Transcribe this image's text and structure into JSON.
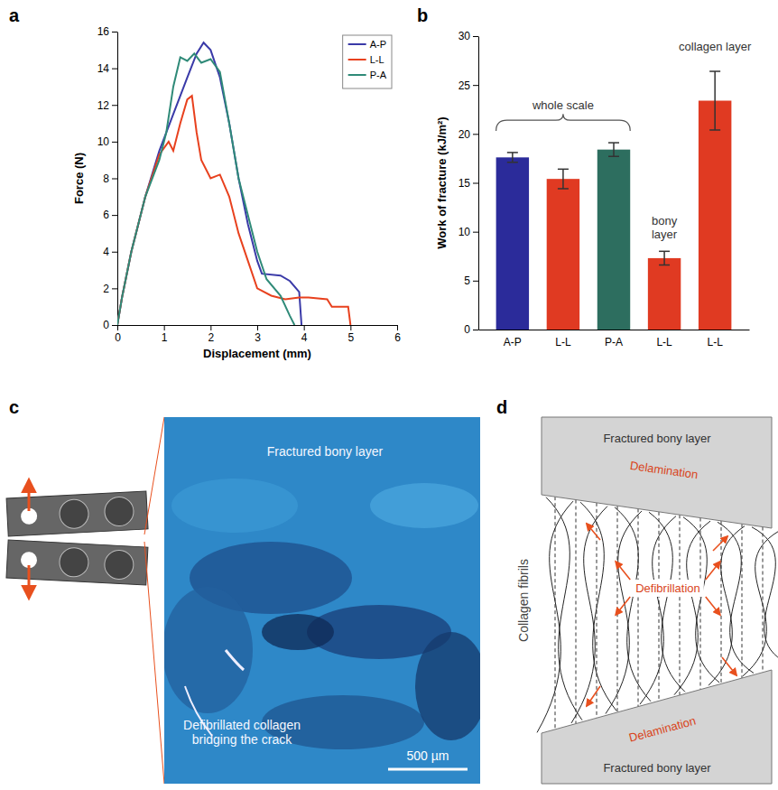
{
  "chart_data": [
    {
      "type": "line",
      "panel_label": "a",
      "x_label": "Displacement (mm)",
      "y_label": "Force (N)",
      "xlim": [
        0,
        6
      ],
      "xticks": [
        0,
        1,
        2,
        3,
        4,
        5,
        6
      ],
      "ylim": [
        0,
        16
      ],
      "yticks": [
        0,
        2,
        4,
        6,
        8,
        10,
        12,
        14,
        16
      ],
      "grid": false,
      "legend": "top-right",
      "series": [
        {
          "name": "A-P",
          "color": "#3a3aa8",
          "x": [
            0,
            0.1,
            0.3,
            0.6,
            0.9,
            1.2,
            1.5,
            1.7,
            1.85,
            2.0,
            2.2,
            2.4,
            2.6,
            2.8,
            3.0,
            3.1,
            3.5,
            3.7,
            3.9,
            3.95
          ],
          "values": [
            0,
            1.5,
            4,
            7,
            9.5,
            11.5,
            13.5,
            14.8,
            15.4,
            15,
            13.5,
            11,
            8,
            5.5,
            3.5,
            2.8,
            2.7,
            2.4,
            1.8,
            0
          ]
        },
        {
          "name": "L-L",
          "color": "#e8411e",
          "x": [
            0,
            0.1,
            0.3,
            0.6,
            0.9,
            1.1,
            1.2,
            1.35,
            1.5,
            1.6,
            1.7,
            1.8,
            2.0,
            2.2,
            2.4,
            2.6,
            2.8,
            3.0,
            3.3,
            3.6,
            3.9,
            4.1,
            4.5,
            4.6,
            4.95,
            5.0
          ],
          "values": [
            0,
            1.5,
            4,
            7,
            9.3,
            10,
            9.5,
            11,
            12.3,
            12.5,
            10.5,
            9,
            8,
            8.2,
            7,
            5,
            3.5,
            2,
            1.6,
            1.4,
            1.5,
            1.5,
            1.4,
            1.0,
            1.0,
            0
          ]
        },
        {
          "name": "P-A",
          "color": "#2f8a78",
          "x": [
            0,
            0.1,
            0.3,
            0.6,
            0.9,
            1.05,
            1.2,
            1.35,
            1.5,
            1.65,
            1.8,
            2.0,
            2.2,
            2.4,
            2.6,
            2.8,
            3.0,
            3.2,
            3.5,
            3.7,
            3.8
          ],
          "values": [
            0,
            1.5,
            4,
            7,
            9,
            10.5,
            13,
            14.6,
            14.4,
            14.8,
            14.3,
            14.5,
            13.8,
            11,
            8,
            6,
            4,
            2.5,
            1.6,
            0.5,
            0
          ]
        }
      ]
    },
    {
      "type": "bar",
      "panel_label": "b",
      "y_label": "Work of fracture (kJ/m²)",
      "categories": [
        "A-P",
        "L-L",
        "P-A",
        "L-L",
        "L-L"
      ],
      "values": [
        17.6,
        15.4,
        18.4,
        7.3,
        23.4
      ],
      "errors": [
        0.5,
        1.0,
        0.7,
        0.7,
        3.0
      ],
      "colors": [
        "#2b2b9a",
        "#e03a22",
        "#2d6e5f",
        "#e03a22",
        "#e03a22"
      ],
      "ylim": [
        0,
        30
      ],
      "yticks": [
        0,
        5,
        10,
        15,
        20,
        25,
        30
      ],
      "grid": false,
      "annotations": [
        "whole scale",
        "bony layer",
        "collagen layer"
      ]
    }
  ],
  "panel_c": {
    "panel_label": "c",
    "labels": [
      "Fractured bony layer",
      "Defibrillated collagen bridging the crack"
    ],
    "scale_bar": "500 µm"
  },
  "panel_d": {
    "panel_label": "d",
    "axis_label": "Collagen fibrils",
    "labels": [
      "Fractured bony layer",
      "Delamination",
      "Defibrillation",
      "Delamination",
      "Fractured bony layer"
    ]
  }
}
